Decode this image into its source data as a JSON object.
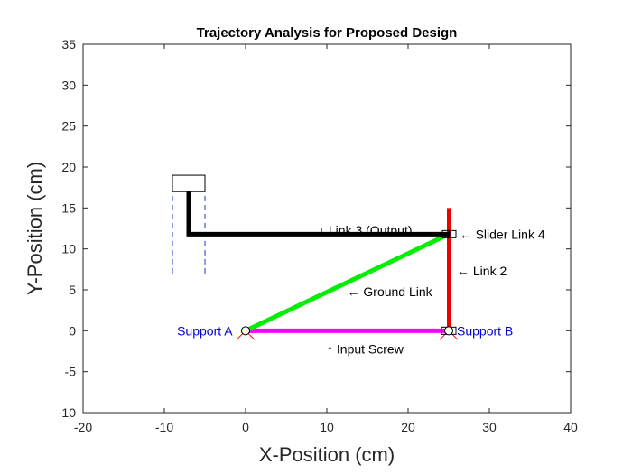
{
  "chart_data": {
    "type": "line",
    "title": "Trajectory Analysis for Proposed Design",
    "xlabel": "X-Position (cm)",
    "ylabel": "Y-Position (cm)",
    "xlim": [
      -20,
      40
    ],
    "ylim": [
      -10,
      35
    ],
    "xticks": [
      -20,
      -10,
      0,
      10,
      20,
      30,
      40
    ],
    "yticks": [
      -10,
      -5,
      0,
      5,
      10,
      15,
      20,
      25,
      30,
      35
    ],
    "grid": false,
    "series": [
      {
        "name": "Input Screw",
        "color": "#ff00ff",
        "x": [
          0,
          25
        ],
        "y": [
          0,
          0
        ]
      },
      {
        "name": "Ground Link",
        "color": "#00ee00",
        "x": [
          0,
          25
        ],
        "y": [
          0,
          11.8
        ]
      },
      {
        "name": "Link 2",
        "color": "#ee0000",
        "x": [
          25,
          25
        ],
        "y": [
          0,
          15
        ]
      },
      {
        "name": "Link 3 (Output)",
        "color": "#000000",
        "x": [
          25,
          -7,
          -7
        ],
        "y": [
          11.8,
          11.8,
          17
        ]
      }
    ],
    "annotations": [
      {
        "text": "↓ Link 3 (Output)",
        "x": 9,
        "y": 12.3,
        "color": "#000000"
      },
      {
        "text": "← Slider Link 4",
        "x": 26.3,
        "y": 11.8,
        "color": "#000000"
      },
      {
        "text": "← Link 2",
        "x": 26,
        "y": 7.3,
        "color": "#000000"
      },
      {
        "text": "← Ground Link",
        "x": 12.5,
        "y": 4.8,
        "color": "#000000"
      },
      {
        "text": "↑ Input Screw",
        "x": 10,
        "y": -2.2,
        "color": "#000000"
      },
      {
        "text": "Support A",
        "x": -1.6,
        "y": 0,
        "color": "#0000cc"
      },
      {
        "text": "Support B",
        "x": 26,
        "y": 0,
        "color": "#0000cc"
      }
    ],
    "slider_guide": {
      "x_left": -9,
      "x_right": -5,
      "y_bottom": 7,
      "y_top": 19
    },
    "supports": [
      {
        "x": 0,
        "y": 0
      },
      {
        "x": 25,
        "y": 0
      }
    ]
  }
}
